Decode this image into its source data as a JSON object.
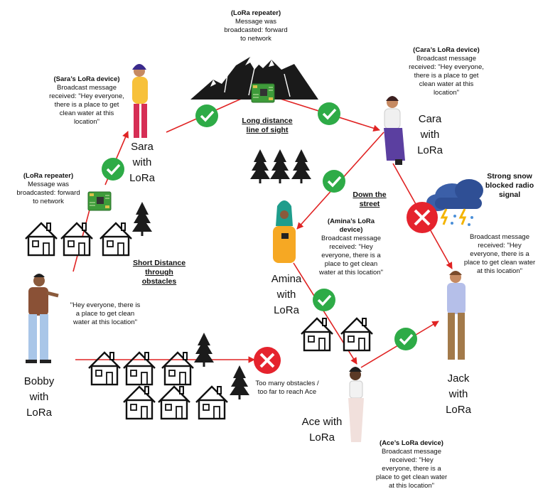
{
  "people": {
    "bobby": "Bobby with LoRa",
    "sara": "Sara with LoRa",
    "cara": "Cara with LoRa",
    "amina": "Amina with LoRa",
    "ace": "Ace with LoRa",
    "jack": "Jack with LoRa"
  },
  "notes": {
    "top_repeater_title": "(LoRa repeater)",
    "top_repeater_body": "Message was broadcasted: forward to network",
    "left_repeater_title": "(LoRa repeater)",
    "left_repeater_body": "Message was broadcasted: forward to network",
    "sara_title": "(Sara’s LoRa device)",
    "sara_body": "Broadcast message received: \"Hey everyone, there is a place to get clean water at this location\"",
    "cara_title": "(Cara’s LoRa device)",
    "cara_body": "Broadcast message received: \"Hey everyone, there is a place to get clean water at this location\"",
    "amina_title": "(Amina’s  LoRa device)",
    "amina_body": "Broadcast message received: \"Hey everyone, there is a place to get clean water at this location\"",
    "jack_body": "Broadcast message received: \"Hey everyone, there is a place to get clean water at this location\"",
    "ace_title": "(Ace’s LoRa device)",
    "ace_body": "Broadcast message received: \"Hey everyone, there is a place to get clean water at this location\"",
    "bobby_msg": "\"Hey everyone, there is a place to get clean water at this location\"",
    "obstacles_fail": "Too many obstacles / too far to reach Ace"
  },
  "labels": {
    "long_distance": "Long distance line of sight",
    "short_distance": "Short Distance through obstacles",
    "down_street": "Down the street",
    "snow": "Strong snow blocked radio signal"
  },
  "colors": {
    "arrow": "#e02323",
    "success": "#2eab47",
    "fail": "#e5232d",
    "board": "#3e9b3a"
  }
}
